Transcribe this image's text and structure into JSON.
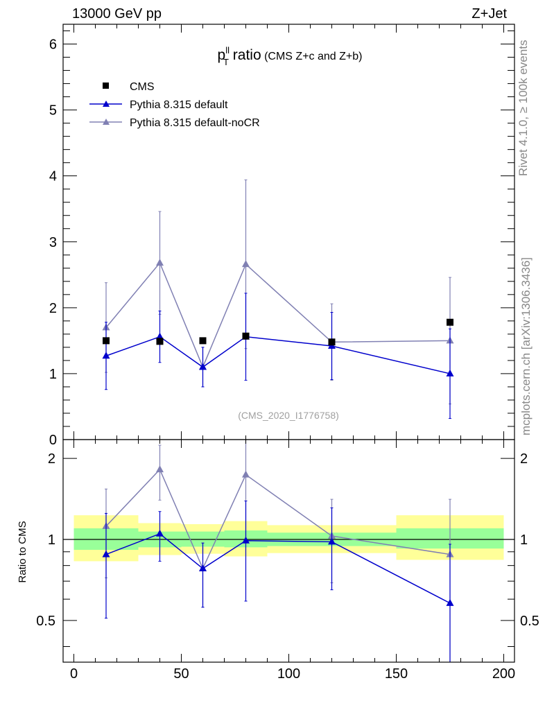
{
  "header": {
    "left": "13000 GeV pp",
    "right": "Z+Jet"
  },
  "side_labels": {
    "rivet": "Rivet 4.1.0, ≥ 100k events",
    "source": "mcplots.cern.ch [arXiv:1306.3436]"
  },
  "colors": {
    "default": "#0000cc",
    "nocr": "#8080b3",
    "band_inner": "#99ff99",
    "band_outer": "#ffff99"
  },
  "chart_data": [
    {
      "type": "scatter",
      "panel": "main",
      "title_main": "p",
      "title_sup": "ll",
      "title_sub": "T",
      "title_word": " ratio",
      "title_suffix": "(CMS  Z+c and Z+b)",
      "watermark": "(CMS_2020_I1776758)",
      "xlim": [
        -5,
        205
      ],
      "ylim": [
        0,
        6.3
      ],
      "yticks": [
        0,
        1,
        2,
        3,
        4,
        5,
        6
      ],
      "ytick_labels": [
        "0",
        "1",
        "2",
        "3",
        "4",
        "5",
        "6"
      ],
      "legend": [
        "CMS",
        "Pythia 8.315 default",
        "Pythia 8.315 default-noCR"
      ],
      "legend_position": "top-left",
      "series": [
        {
          "name": "CMS",
          "marker": "square",
          "x": [
            15,
            40,
            60,
            80,
            120,
            175
          ],
          "y": [
            1.5,
            1.49,
            1.5,
            1.57,
            1.48,
            1.78
          ]
        },
        {
          "name": "Pythia 8.315 default",
          "marker": "triangle",
          "line": true,
          "x": [
            15,
            40,
            60,
            80,
            120,
            175
          ],
          "y": [
            1.27,
            1.56,
            1.1,
            1.56,
            1.42,
            1.0
          ],
          "err_lo": [
            0.51,
            0.39,
            0.3,
            0.66,
            0.51,
            0.68
          ],
          "err_hi": [
            0.51,
            0.39,
            0.3,
            0.66,
            0.51,
            0.68
          ]
        },
        {
          "name": "Pythia 8.315 default-noCR",
          "marker": "triangle",
          "line": true,
          "x": [
            15,
            40,
            60,
            80,
            120,
            175
          ],
          "y": [
            1.7,
            2.68,
            1.1,
            2.66,
            1.48,
            1.5
          ],
          "err_lo": [
            0.68,
            0.78,
            0.3,
            1.28,
            0.58,
            0.96
          ],
          "err_hi": [
            0.68,
            0.78,
            0.3,
            1.28,
            0.58,
            0.96
          ]
        }
      ]
    },
    {
      "type": "scatter",
      "panel": "ratio",
      "ylabel": "Ratio to CMS",
      "xlim": [
        -5,
        205
      ],
      "ylim": [
        0.35,
        2.35
      ],
      "yscale": "log",
      "yticks": [
        0.5,
        1,
        2
      ],
      "ytick_labels": [
        "0.5",
        "1",
        "2"
      ],
      "xticks": [
        0,
        50,
        100,
        150,
        200
      ],
      "xtick_labels": [
        "0",
        "50",
        "100",
        "150",
        "200"
      ],
      "bands": [
        {
          "x_lo": 0,
          "x_hi": 30,
          "inner": [
            0.915,
            1.1
          ],
          "outer": [
            0.83,
            1.23
          ]
        },
        {
          "x_lo": 30,
          "x_hi": 50,
          "inner": [
            0.935,
            1.07
          ],
          "outer": [
            0.875,
            1.15
          ]
        },
        {
          "x_lo": 50,
          "x_hi": 70,
          "inner": [
            0.94,
            1.07
          ],
          "outer": [
            0.885,
            1.14
          ]
        },
        {
          "x_lo": 70,
          "x_hi": 90,
          "inner": [
            0.935,
            1.08
          ],
          "outer": [
            0.865,
            1.17
          ]
        },
        {
          "x_lo": 90,
          "x_hi": 150,
          "inner": [
            0.945,
            1.06
          ],
          "outer": [
            0.89,
            1.13
          ]
        },
        {
          "x_lo": 150,
          "x_hi": 200,
          "inner": [
            0.925,
            1.1
          ],
          "outer": [
            0.84,
            1.23
          ]
        }
      ],
      "series": [
        {
          "name": "Pythia 8.315 default",
          "marker": "triangle",
          "line": true,
          "x": [
            15,
            40,
            60,
            80,
            120,
            175
          ],
          "y": [
            0.88,
            1.05,
            0.78,
            0.99,
            0.98,
            0.58
          ],
          "err_lo": [
            0.37,
            0.22,
            0.22,
            0.4,
            0.33,
            0.28
          ],
          "err_hi": [
            0.37,
            0.22,
            0.19,
            0.4,
            0.33,
            0.38
          ]
        },
        {
          "name": "Pythia 8.315 default-noCR",
          "marker": "triangle",
          "line": true,
          "x": [
            15,
            40,
            60,
            80,
            120,
            175
          ],
          "y": [
            1.12,
            1.82,
            0.78,
            1.74,
            1.03,
            0.88
          ],
          "err_lo": [
            0.4,
            0.42,
            0.22,
            0.75,
            0.34,
            0.54
          ],
          "err_hi": [
            0.42,
            0.42,
            0.19,
            0.75,
            0.38,
            0.53
          ]
        }
      ]
    }
  ]
}
